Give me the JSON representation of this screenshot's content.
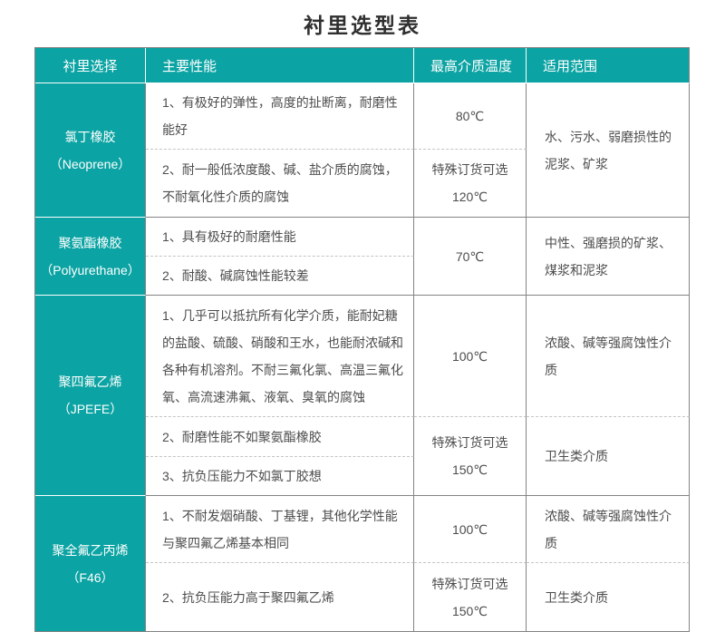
{
  "title": "衬里选型表",
  "colors": {
    "header_bg": "#0ba3a3",
    "border": "#848484",
    "dashed_divider": "#c4c4c4",
    "body_text": "#4d4d4d"
  },
  "table": {
    "headers": [
      "衬里选择",
      "主要性能",
      "最高介质温度",
      "适用范围"
    ],
    "groups": [
      {
        "name": "氯丁橡胶",
        "name_en": "（Neoprene）",
        "rows": [
          {
            "perf": "1、有极好的弹性，高度的扯断离，耐磨性能好",
            "temp": [
              "80℃"
            ]
          },
          {
            "perf": "2、耐一般低浓度酸、碱、盐介质的腐蚀，不耐氧化性介质的腐蚀",
            "temp": [
              "特殊订货可选",
              "120℃"
            ]
          }
        ],
        "range": "水、污水、弱磨损性的泥浆、矿浆"
      },
      {
        "name": "聚氨酯橡胶",
        "name_en": "（Polyurethane）",
        "rows": [
          {
            "perf": "1、具有极好的耐磨性能"
          },
          {
            "perf": "2、耐酸、碱腐蚀性能较差"
          }
        ],
        "temp": [
          "70℃"
        ],
        "range": "中性、强磨损的矿浆、煤浆和泥浆"
      },
      {
        "name": "聚四氟乙烯",
        "name_en": "（JPEFE）",
        "rows": [
          {
            "perf": "1、几乎可以抵抗所有化学介质，能耐妃糖的盐酸、硫酸、硝酸和王水，也能耐浓碱和各种有机溶剂。不耐三氟化氯、高温三氟化氧、高流速沸氟、液氧、臭氧的腐蚀",
            "temp": [
              "100℃"
            ],
            "range": "浓酸、碱等强腐蚀性介质"
          },
          {
            "perf": "2、耐磨性能不如聚氨酯橡胶",
            "temp": [
              "特殊订货可选",
              "150℃"
            ],
            "range": "卫生类介质"
          },
          {
            "perf": "3、抗负压能力不如氯丁胶想"
          }
        ]
      },
      {
        "name": "聚全氟乙丙烯",
        "name_en": "（F46）",
        "rows": [
          {
            "perf": "1、不耐发烟硝酸、丁基锂，其他化学性能与聚四氟乙烯基本相同",
            "temp": [
              "100℃"
            ],
            "range": "浓酸、碱等强腐蚀性介质"
          },
          {
            "perf": "2、抗负压能力高于聚四氟乙烯",
            "temp": [
              "特殊订货可选",
              "150℃"
            ],
            "range": "卫生类介质"
          }
        ]
      }
    ]
  }
}
